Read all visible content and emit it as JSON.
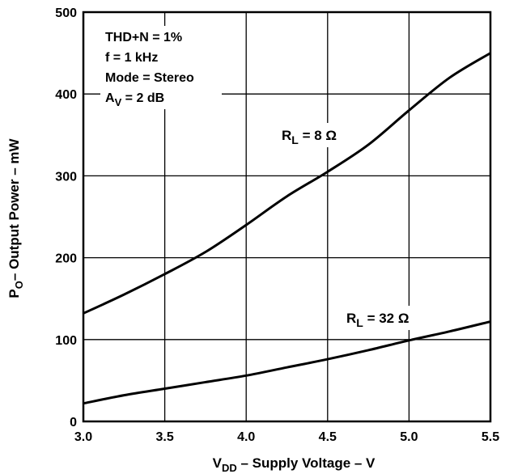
{
  "chart_data": {
    "type": "line",
    "xlabel": {
      "main": "V",
      "sub": "DD",
      "rest": " – Supply Voltage – V"
    },
    "ylabel": {
      "main": "P",
      "sub": "O",
      "rest": "– Output Power – mW"
    },
    "xlim": [
      3.0,
      5.5
    ],
    "ylim": [
      0,
      500
    ],
    "grid": true,
    "x_ticks": [
      "3.0",
      "3.5",
      "4.0",
      "4.5",
      "5.0",
      "5.5"
    ],
    "y_ticks": [
      "0",
      "100",
      "200",
      "300",
      "400",
      "500"
    ],
    "annotations": [
      {
        "text": "THD+N = 1%"
      },
      {
        "text": "f = 1 kHz"
      },
      {
        "text": "Mode = Stereo"
      },
      {
        "main": "A",
        "sub": "V",
        "rest": " = 2 dB"
      }
    ],
    "series": [
      {
        "name": {
          "main": "R",
          "sub": "L",
          "rest": " = 8 Ω"
        },
        "x": [
          3.0,
          3.25,
          3.5,
          3.75,
          4.0,
          4.25,
          4.5,
          4.75,
          5.0,
          5.25,
          5.5
        ],
        "y": [
          132,
          155,
          180,
          207,
          240,
          275,
          305,
          338,
          380,
          420,
          450
        ]
      },
      {
        "name": {
          "main": "R",
          "sub": "L",
          "rest": " = 32 Ω"
        },
        "x": [
          3.0,
          3.25,
          3.5,
          3.75,
          4.0,
          4.25,
          4.5,
          4.75,
          5.0,
          5.25,
          5.5
        ],
        "y": [
          22,
          32,
          40,
          48,
          56,
          66,
          76,
          87,
          99,
          110,
          122
        ]
      }
    ],
    "colors": {
      "line": "#000000",
      "grid": "#000000",
      "background": "#ffffff"
    }
  }
}
